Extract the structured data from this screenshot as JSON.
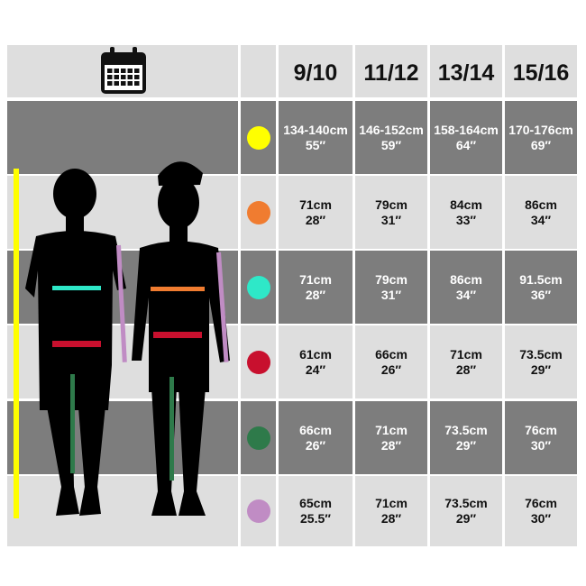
{
  "columns": [
    "9/10",
    "11/12",
    "13/14",
    "15/16"
  ],
  "rows": [
    {
      "color": "#ffff00",
      "values": [
        [
          "134-140cm",
          "55″"
        ],
        [
          "146-152cm",
          "59″"
        ],
        [
          "158-164cm",
          "64″"
        ],
        [
          "170-176cm",
          "69″"
        ]
      ]
    },
    {
      "color": "#f07c30",
      "values": [
        [
          "71cm",
          "28″"
        ],
        [
          "79cm",
          "31″"
        ],
        [
          "84cm",
          "33″"
        ],
        [
          "86cm",
          "34″"
        ]
      ]
    },
    {
      "color": "#2ee8c8",
      "values": [
        [
          "71cm",
          "28″"
        ],
        [
          "79cm",
          "31″"
        ],
        [
          "86cm",
          "34″"
        ],
        [
          "91.5cm",
          "36″"
        ]
      ]
    },
    {
      "color": "#c8102e",
      "values": [
        [
          "61cm",
          "24″"
        ],
        [
          "66cm",
          "26″"
        ],
        [
          "71cm",
          "28″"
        ],
        [
          "73.5cm",
          "29″"
        ]
      ]
    },
    {
      "color": "#2e7a4a",
      "values": [
        [
          "66cm",
          "26″"
        ],
        [
          "71cm",
          "28″"
        ],
        [
          "73.5cm",
          "29″"
        ],
        [
          "76cm",
          "30″"
        ]
      ]
    },
    {
      "color": "#c08cc4",
      "values": [
        [
          "65cm",
          "25.5″"
        ],
        [
          "71cm",
          "28″"
        ],
        [
          "73.5cm",
          "29″"
        ],
        [
          "76cm",
          "30″"
        ]
      ]
    }
  ],
  "icons": {
    "header": "calendar-icon",
    "figures": "child-silhouettes-icon"
  }
}
